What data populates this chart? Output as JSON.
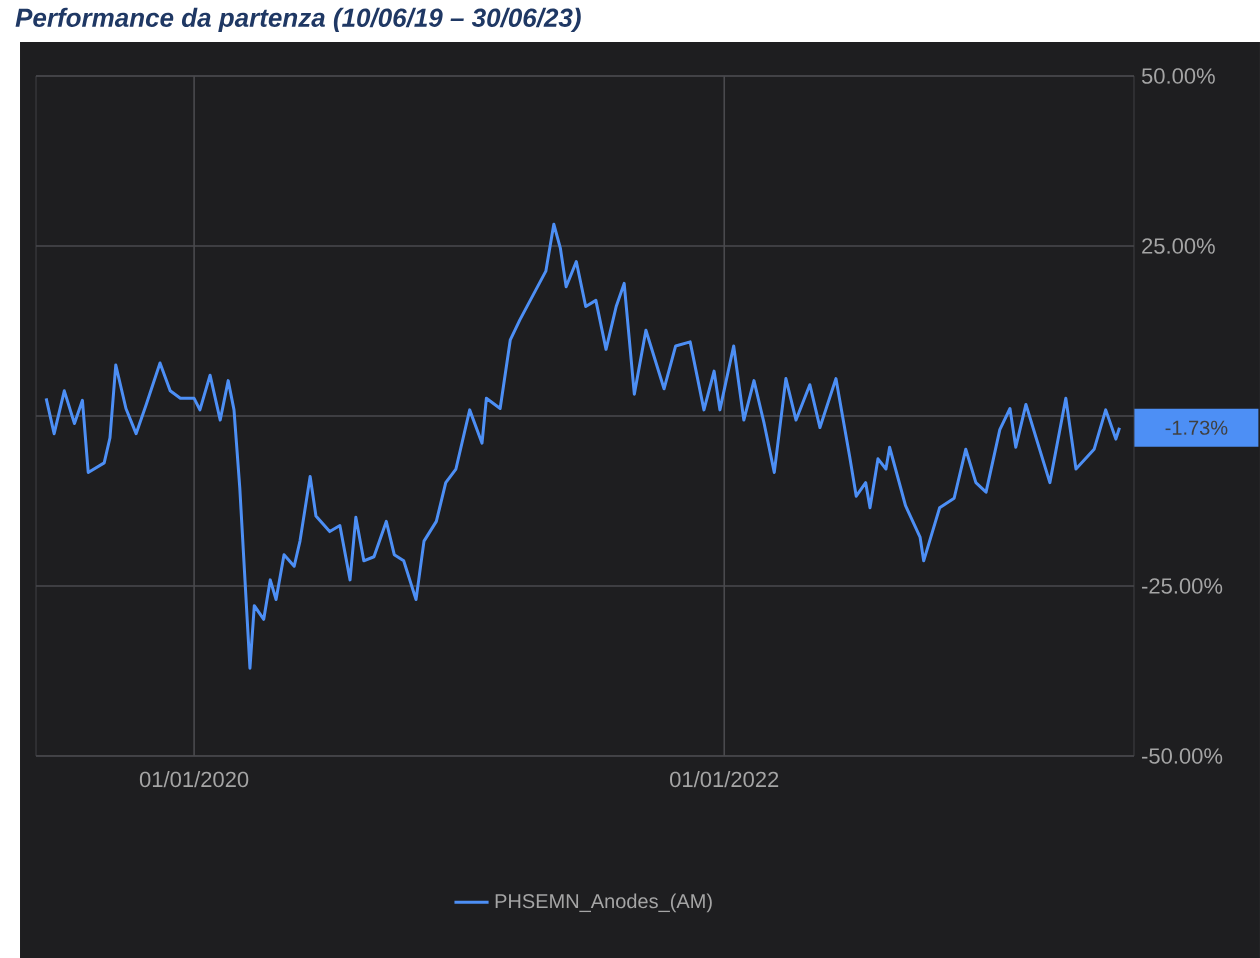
{
  "chart_data": {
    "type": "line",
    "title": "Performance da partenza (10/06/19 – 30/06/23)",
    "x": [
      "2019-06-11",
      "2019-06-22",
      "2019-07-06",
      "2019-07-20",
      "2019-07-31",
      "2019-08-08",
      "2019-08-30",
      "2019-09-07",
      "2019-09-15",
      "2019-09-29",
      "2019-10-13",
      "2019-10-27",
      "2019-11-15",
      "2019-11-29",
      "2019-12-13",
      "2020-01-01",
      "2020-01-09",
      "2020-01-23",
      "2020-02-06",
      "2020-02-17",
      "2020-02-25",
      "2020-03-04",
      "2020-03-18",
      "2020-03-24",
      "2020-04-06",
      "2020-04-15",
      "2020-04-23",
      "2020-05-04",
      "2020-05-18",
      "2020-05-26",
      "2020-06-09",
      "2020-06-17",
      "2020-07-06",
      "2020-07-20",
      "2020-08-03",
      "2020-08-11",
      "2020-08-22",
      "2020-09-05",
      "2020-09-22",
      "2020-10-03",
      "2020-10-16",
      "2020-11-02",
      "2020-11-13",
      "2020-11-30",
      "2020-12-13",
      "2020-12-27",
      "2021-01-15",
      "2021-02-01",
      "2021-02-07",
      "2021-02-26",
      "2021-03-12",
      "2021-03-25",
      "2021-04-14",
      "2021-04-30",
      "2021-05-11",
      "2021-05-20",
      "2021-05-28",
      "2021-06-11",
      "2021-06-24",
      "2021-07-08",
      "2021-07-22",
      "2021-08-05",
      "2021-08-16",
      "2021-08-30",
      "2021-09-15",
      "2021-10-10",
      "2021-10-26",
      "2021-11-15",
      "2021-12-04",
      "2021-12-18",
      "2021-12-26",
      "2022-01-14",
      "2022-01-28",
      "2022-02-11",
      "2022-02-25",
      "2022-03-11",
      "2022-03-27",
      "2022-04-10",
      "2022-04-29",
      "2022-05-13",
      "2022-06-04",
      "2022-06-23",
      "2022-07-02",
      "2022-07-15",
      "2022-07-21",
      "2022-08-01",
      "2022-08-12",
      "2022-08-17",
      "2022-09-08",
      "2022-09-28",
      "2022-10-03",
      "2022-10-25",
      "2022-11-14",
      "2022-11-30",
      "2022-12-14",
      "2022-12-28",
      "2023-01-16",
      "2023-01-30",
      "2023-02-07",
      "2023-02-21",
      "2023-03-07",
      "2023-03-26",
      "2023-04-17",
      "2023-05-01",
      "2023-05-26",
      "2023-06-11",
      "2023-06-25",
      "2023-06-30"
    ],
    "series": [
      {
        "name": "PHSEMN_Anodes_(AM)",
        "color": "#4d8ff5",
        "values": [
          2.6,
          -2.6,
          3.7,
          -1.1,
          2.3,
          -8.3,
          -6.9,
          -3.2,
          7.5,
          1.1,
          -2.6,
          1.7,
          7.8,
          3.7,
          2.6,
          2.6,
          0.9,
          6.0,
          -0.6,
          5.2,
          0.9,
          -10.6,
          -37.1,
          -27.9,
          -29.9,
          -24.1,
          -27.0,
          -20.4,
          -22.1,
          -18.4,
          -8.9,
          -14.7,
          -17.0,
          -16.1,
          -24.1,
          -14.9,
          -21.3,
          -20.7,
          -15.5,
          -20.4,
          -21.3,
          -27.0,
          -18.4,
          -15.5,
          -9.8,
          -7.8,
          0.9,
          -4.0,
          2.6,
          1.1,
          11.2,
          14.1,
          18.1,
          21.3,
          28.2,
          24.7,
          19.0,
          22.7,
          16.1,
          17.0,
          9.8,
          16.1,
          19.5,
          3.2,
          12.6,
          4.0,
          10.3,
          10.9,
          0.9,
          6.6,
          0.9,
          10.3,
          -0.6,
          5.2,
          -1.1,
          -8.3,
          5.5,
          -0.6,
          4.6,
          -1.7,
          5.5,
          -6.0,
          -11.8,
          -9.8,
          -13.5,
          -6.3,
          -7.8,
          -4.6,
          -13.2,
          -17.8,
          -21.3,
          -13.5,
          -12.1,
          -4.9,
          -9.8,
          -11.2,
          -2.0,
          1.1,
          -4.6,
          1.7,
          -3.2,
          -9.8,
          2.6,
          -7.8,
          -4.9,
          0.9,
          -3.4,
          -1.73
        ]
      }
    ],
    "xlim": [
      "2019-05-28",
      "2023-07-20"
    ],
    "xticks": [
      {
        "value": "2020-01-01",
        "label": "01/01/2020"
      },
      {
        "value": "2022-01-01",
        "label": "01/01/2022"
      }
    ],
    "ylim": [
      -50,
      50
    ],
    "yticks": [
      {
        "value": -50,
        "label": "-50.00%"
      },
      {
        "value": -25,
        "label": "-25.00%"
      },
      {
        "value": 0,
        "label": null
      },
      {
        "value": 25,
        "label": "25.00%"
      },
      {
        "value": 50,
        "label": "50.00%"
      }
    ],
    "annotations": [
      {
        "text": "-1.73%",
        "x": "2023-06-30",
        "y": -1.73
      }
    ],
    "grid": true,
    "legend": "bottom",
    "line_style": "solid",
    "marker": "none"
  }
}
